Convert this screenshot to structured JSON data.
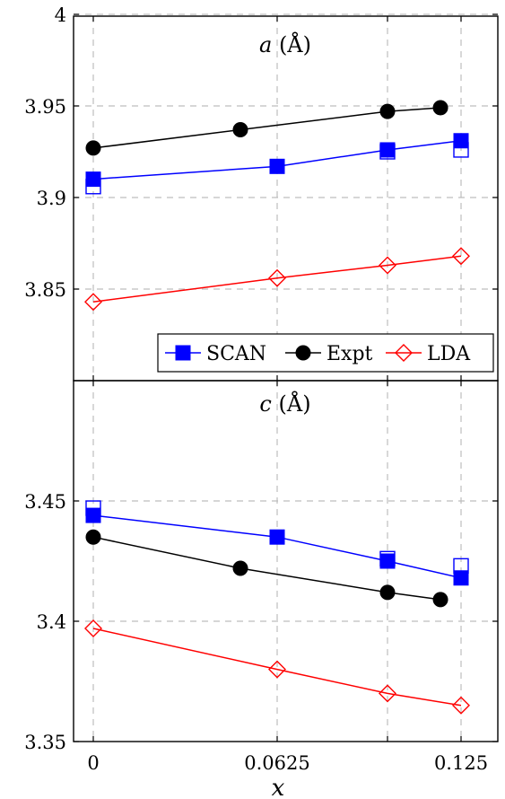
{
  "chart_data": [
    {
      "type": "line",
      "title": "a (Å)",
      "title_var": "a",
      "title_unit": "(Å)",
      "xlabel": "",
      "ylabel": "",
      "xlim": [
        0,
        0.125
      ],
      "ylim": [
        3.8,
        4.0
      ],
      "yticks": [
        "4",
        "3.95",
        "3.9",
        "3.85"
      ],
      "grid": true,
      "series": [
        {
          "name": "SCAN",
          "color": "#0000ff",
          "marker": "square-filled",
          "x": [
            0,
            0.0625,
            0.1,
            0.125
          ],
          "y": [
            3.91,
            3.917,
            3.926,
            3.931
          ]
        },
        {
          "name": "",
          "color": "#0000ff",
          "marker": "square-open",
          "x": [
            0,
            0.1,
            0.125
          ],
          "y": [
            3.906,
            3.925,
            3.926
          ]
        },
        {
          "name": "Expt",
          "color": "#000000",
          "marker": "circle-filled",
          "x": [
            0,
            0.05,
            0.1,
            0.118
          ],
          "y": [
            3.927,
            3.937,
            3.947,
            3.949
          ]
        },
        {
          "name": "LDA",
          "color": "#ff0000",
          "marker": "diamond-open",
          "x": [
            0,
            0.0625,
            0.1,
            0.125
          ],
          "y": [
            3.843,
            3.856,
            3.863,
            3.868
          ]
        }
      ],
      "legend": {
        "placement": "bottom-right",
        "entries": [
          "SCAN",
          "Expt",
          "LDA"
        ]
      }
    },
    {
      "type": "line",
      "title": "c (Å)",
      "title_var": "c",
      "title_unit": "(Å)",
      "xlabel": "x",
      "ylabel": "",
      "xlim": [
        0,
        0.125
      ],
      "xticks": [
        "0",
        "0.0625",
        "0.125"
      ],
      "ylim": [
        3.35,
        3.5
      ],
      "yticks": [
        "3.45",
        "3.4",
        "3.35"
      ],
      "grid": true,
      "series": [
        {
          "name": "SCAN",
          "color": "#0000ff",
          "marker": "square-filled",
          "x": [
            0,
            0.0625,
            0.1,
            0.125
          ],
          "y": [
            3.444,
            3.435,
            3.425,
            3.418
          ]
        },
        {
          "name": "",
          "color": "#0000ff",
          "marker": "square-open",
          "x": [
            0,
            0.1,
            0.125
          ],
          "y": [
            3.447,
            3.426,
            3.423
          ]
        },
        {
          "name": "Expt",
          "color": "#000000",
          "marker": "circle-filled",
          "x": [
            0,
            0.05,
            0.1,
            0.118
          ],
          "y": [
            3.435,
            3.422,
            3.412,
            3.409
          ]
        },
        {
          "name": "LDA",
          "color": "#ff0000",
          "marker": "diamond-open",
          "x": [
            0,
            0.0625,
            0.1,
            0.125
          ],
          "y": [
            3.397,
            3.38,
            3.37,
            3.365
          ]
        }
      ]
    }
  ]
}
